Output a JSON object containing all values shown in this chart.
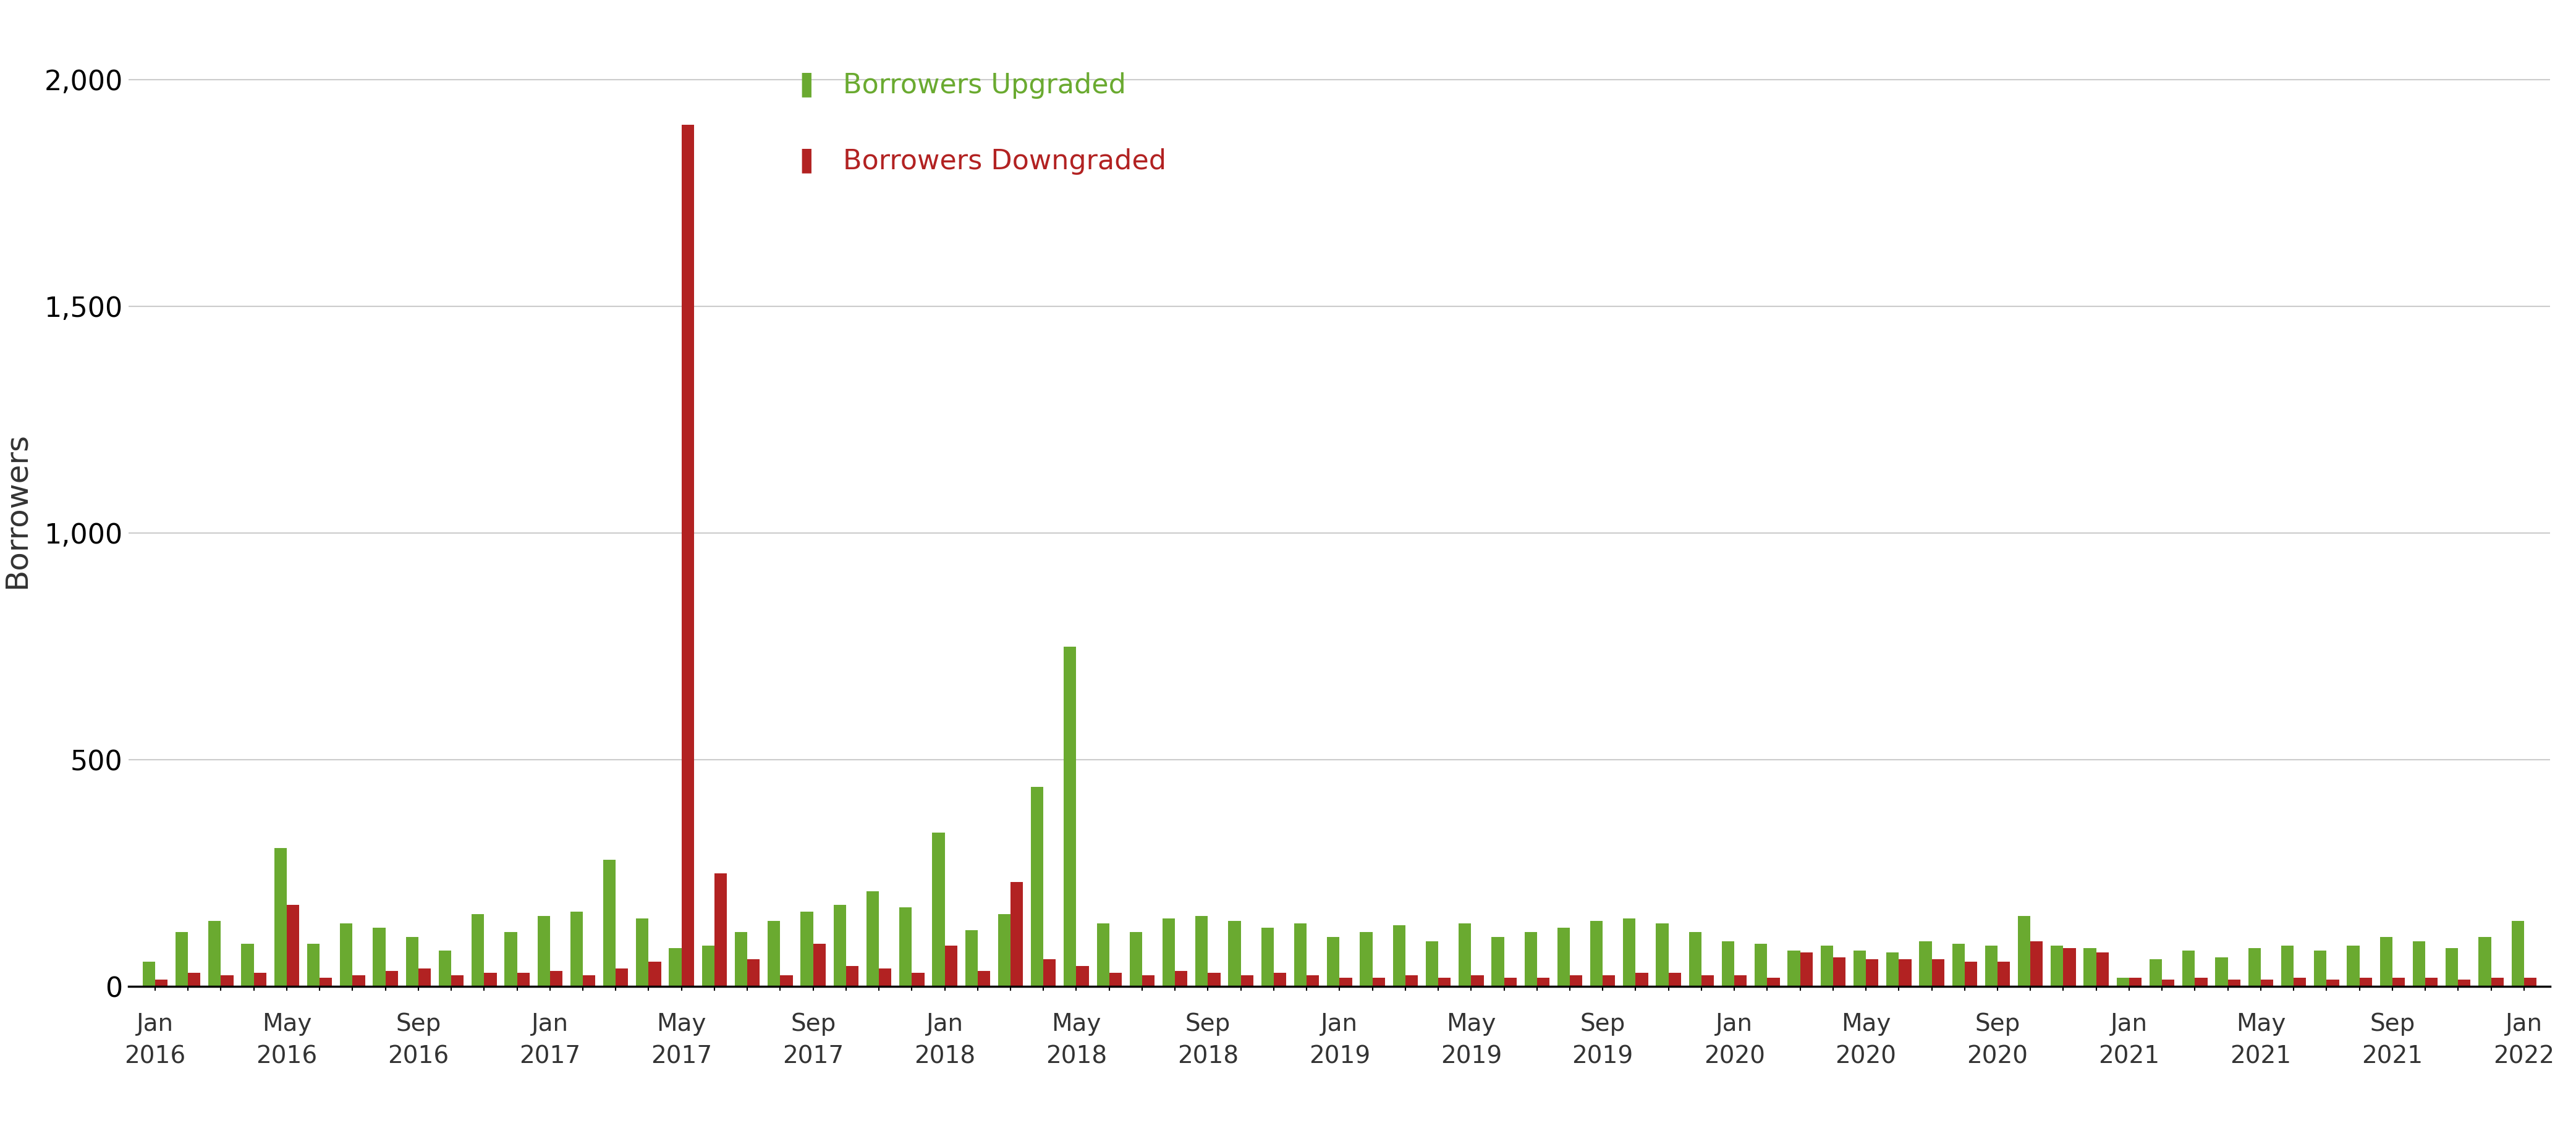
{
  "ylabel": "Borrowers",
  "upgraded_color": "#6aaa30",
  "downgraded_color": "#b22222",
  "legend_upgraded": "Borrowers Upgraded",
  "legend_downgraded": "Borrowers Downgraded",
  "ylim": [
    0,
    2100
  ],
  "yticks": [
    0,
    500,
    1000,
    1500,
    2000
  ],
  "background_color": "#ffffff",
  "xtick_labels": [
    "Jan",
    "",
    "",
    "",
    "May",
    "",
    "",
    "",
    "Sep",
    "",
    "",
    "",
    "Jan",
    "",
    "",
    "",
    "May",
    "",
    "",
    "",
    "Sep",
    "",
    "",
    "",
    "Jan",
    "",
    "",
    "",
    "May",
    "",
    "",
    "",
    "Sep",
    "",
    "",
    "",
    "Jan",
    "",
    "",
    "",
    "May",
    "",
    "",
    "",
    "Sep",
    "",
    "",
    "",
    "Jan",
    "",
    "",
    "",
    "May",
    "",
    "",
    "",
    "Sep",
    "",
    "",
    "",
    "Jan",
    "",
    "",
    "",
    "May",
    "",
    "",
    "",
    "Sep",
    "",
    "",
    "",
    "Jan"
  ],
  "xtick_years": [
    "2016",
    "",
    "",
    "",
    "2016",
    "",
    "",
    "",
    "2016",
    "",
    "",
    "",
    "2017",
    "",
    "",
    "",
    "2017",
    "",
    "",
    "",
    "2017",
    "",
    "",
    "",
    "2018",
    "",
    "",
    "",
    "2018",
    "",
    "",
    "",
    "2018",
    "",
    "",
    "",
    "2019",
    "",
    "",
    "",
    "2019",
    "",
    "",
    "",
    "2019",
    "",
    "",
    "",
    "2020",
    "",
    "",
    "",
    "2020",
    "",
    "",
    "",
    "2020",
    "",
    "",
    "",
    "2021",
    "",
    "",
    "",
    "2021",
    "",
    "",
    "",
    "2021",
    "",
    "",
    "",
    "2022"
  ],
  "upgraded": [
    55,
    120,
    145,
    95,
    305,
    95,
    140,
    130,
    110,
    80,
    160,
    120,
    155,
    165,
    280,
    150,
    85,
    90,
    120,
    145,
    165,
    180,
    210,
    175,
    340,
    125,
    160,
    440,
    750,
    140,
    120,
    150,
    155,
    145,
    130,
    140,
    110,
    120,
    135,
    100,
    140,
    110,
    120,
    130,
    145,
    150,
    140,
    120,
    100,
    95,
    80,
    90,
    80,
    75,
    100,
    95,
    90,
    155,
    90,
    85,
    20,
    60,
    80,
    65,
    85,
    90,
    80,
    90,
    110,
    100,
    85,
    110,
    145
  ],
  "downgraded": [
    15,
    30,
    25,
    30,
    180,
    20,
    25,
    35,
    40,
    25,
    30,
    30,
    35,
    25,
    40,
    55,
    1900,
    250,
    60,
    25,
    95,
    45,
    40,
    30,
    90,
    35,
    230,
    60,
    45,
    30,
    25,
    35,
    30,
    25,
    30,
    25,
    20,
    20,
    25,
    20,
    25,
    20,
    20,
    25,
    25,
    30,
    30,
    25,
    25,
    20,
    75,
    65,
    60,
    60,
    60,
    55,
    55,
    100,
    85,
    75,
    20,
    15,
    20,
    15,
    15,
    20,
    15,
    20,
    20,
    20,
    15,
    20,
    20
  ]
}
